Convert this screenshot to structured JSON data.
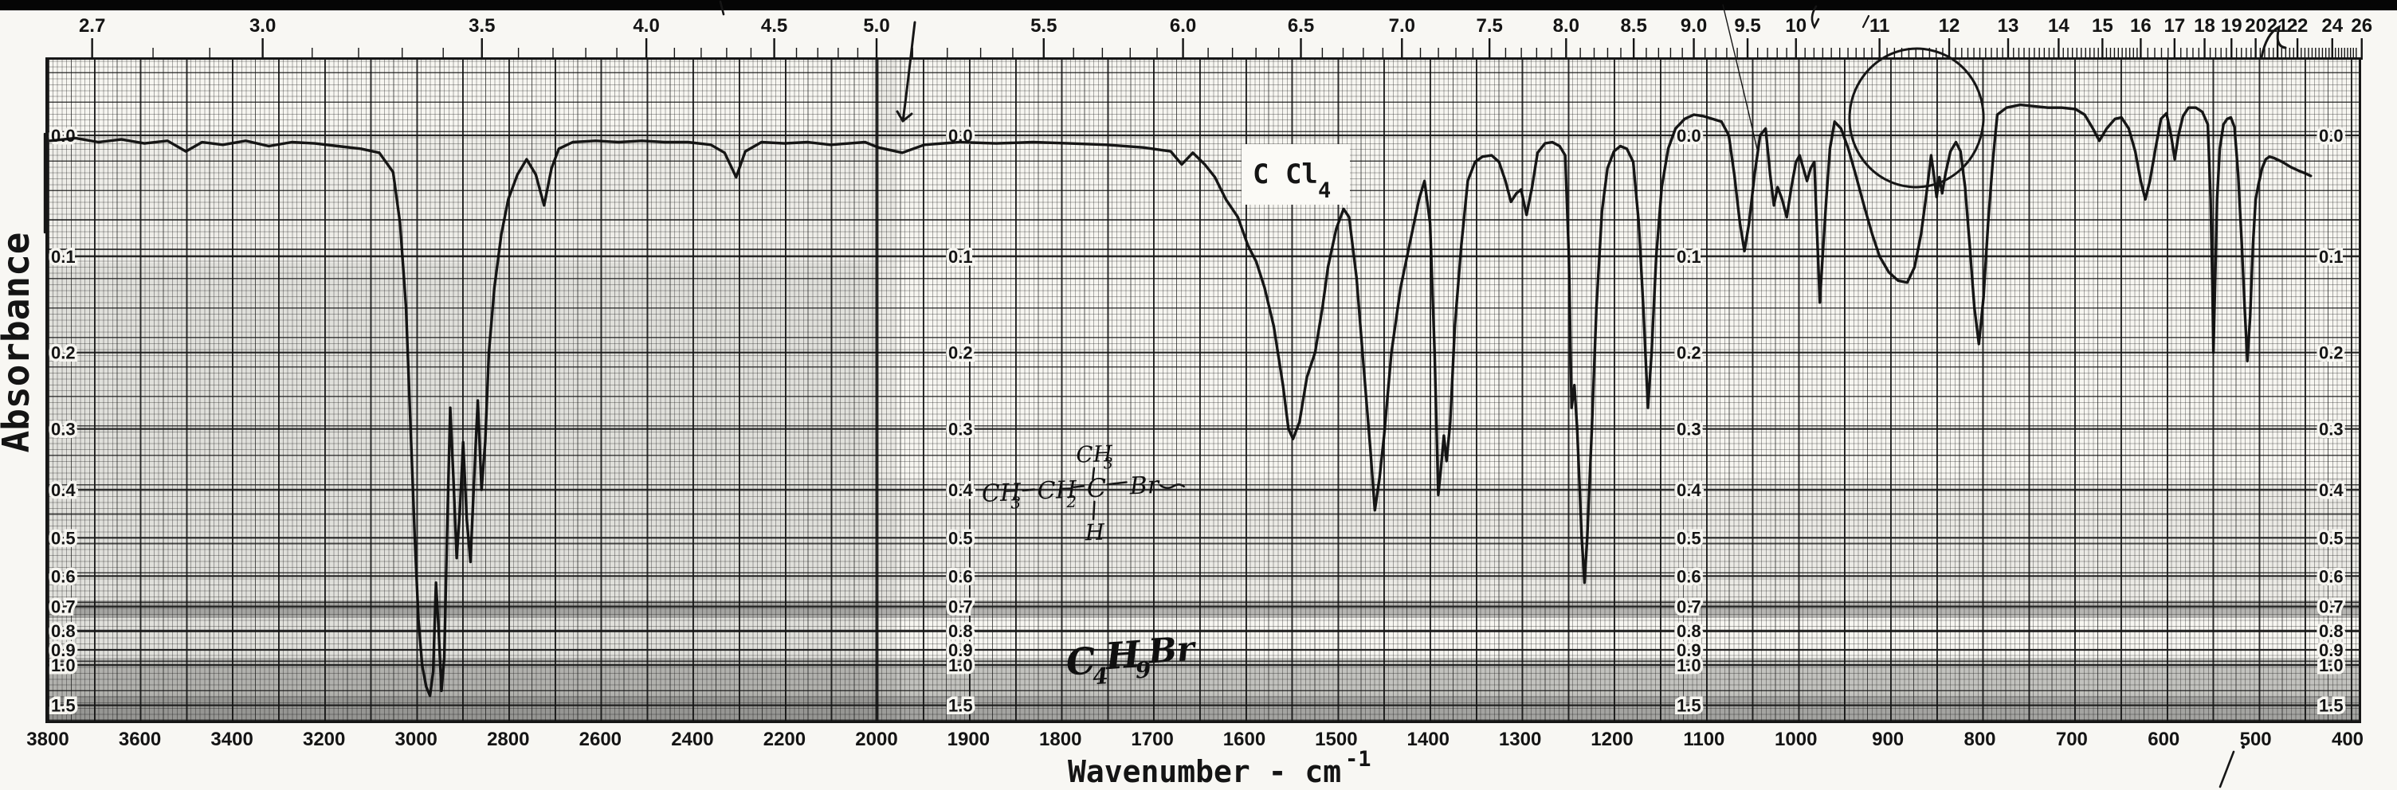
{
  "page": {
    "background_color": "#f8f7f3",
    "ink_color": "#161616",
    "scan_edge_bar": "black strip at top of scanned page"
  },
  "chart_data": {
    "type": "line",
    "title": "",
    "description": "Scanned infrared absorbance spectrum of C4H9Br (2-bromobutane) in CCl4 solvent on printed chart-ruled paper",
    "legend_position": "none",
    "grid": "fine printed graph grid, on",
    "x_axis_bottom": {
      "label_text": "Wavenumber - cm",
      "label_exponent": "-1",
      "tick_values": [
        3800,
        3600,
        3400,
        3200,
        3000,
        2800,
        2600,
        2400,
        2200,
        2000,
        1900,
        1800,
        1700,
        1600,
        1500,
        1400,
        1300,
        1200,
        1100,
        1000,
        900,
        800,
        700,
        600,
        500,
        400
      ],
      "range_note": "scale changes at 2000 cm-1: 3800-2000 compressed, 2000-400 expanded"
    },
    "x_axis_top": {
      "unit": "wavelength-microns",
      "labels": [
        "2.7",
        "3.0",
        "3.5",
        "4.0",
        "4.5",
        "5.0",
        "5.5",
        "6.0",
        "6.5",
        "7.0",
        "7.5",
        "8.0",
        "8.5",
        "9.0",
        "9.5",
        "10",
        "11",
        "12",
        "13",
        "14",
        "15",
        "16",
        "17",
        "18",
        "19",
        "20",
        "21",
        "22",
        "24",
        "26"
      ],
      "values": [
        2.7,
        3.0,
        3.5,
        4.0,
        4.5,
        5.0,
        5.5,
        6.0,
        6.5,
        7.0,
        7.5,
        8.0,
        8.5,
        9.0,
        9.5,
        10,
        11,
        12,
        13,
        14,
        15,
        16,
        17,
        18,
        19,
        20,
        21,
        22,
        24,
        26
      ]
    },
    "y_axis": {
      "label": "Absorbance",
      "tick_labels": [
        "0.0",
        "0.1",
        "0.2",
        "0.3",
        "0.4",
        "0.5",
        "0.6",
        "0.7",
        "0.8",
        "0.9",
        "1.0",
        "1.5"
      ],
      "tick_values": [
        0.0,
        0.1,
        0.2,
        0.3,
        0.4,
        0.5,
        0.6,
        0.7,
        0.8,
        0.9,
        1.0,
        1.5
      ],
      "scale_note": "linear in transmittance, labeled in absorbance; label columns repeated 4 times across chart"
    },
    "annotations": {
      "solvent": {
        "text_main": "C Cl",
        "text_sub": "4"
      },
      "formula": {
        "c": "C",
        "sub4": "4",
        "h": "H",
        "sub9": "9",
        "br": "Br"
      },
      "structure": {
        "reading": "CH3-CH2-C(CH3)(H)-Br",
        "chain1": "CH",
        "chain1_sub": "3",
        "chain2": "CH",
        "chain2_sub": "2",
        "center": "C",
        "top_group": "CH",
        "top_sub": "3",
        "bottom": "H",
        "halide": "Br"
      },
      "pen_marks": [
        "arrow-at-5.1-microns",
        "ellipse-circle-around-11.5-micron-band",
        "curl-mark-top-right",
        "scribbles-top",
        "slash-bottom-right",
        "tick-above-4.7-microns",
        "bracket-left-edge"
      ]
    },
    "series": [
      {
        "name": "IR absorbance trace",
        "x_unit": "cm-1",
        "y_unit": "absorbance",
        "points": [
          [
            3795,
            0.004
          ],
          [
            3740,
            0.002
          ],
          [
            3690,
            0.005
          ],
          [
            3640,
            0.003
          ],
          [
            3590,
            0.006
          ],
          [
            3540,
            0.004
          ],
          [
            3500,
            0.012
          ],
          [
            3465,
            0.005
          ],
          [
            3420,
            0.007
          ],
          [
            3370,
            0.004
          ],
          [
            3320,
            0.008
          ],
          [
            3270,
            0.005
          ],
          [
            3220,
            0.006
          ],
          [
            3170,
            0.008
          ],
          [
            3120,
            0.01
          ],
          [
            3080,
            0.013
          ],
          [
            3050,
            0.028
          ],
          [
            3035,
            0.07
          ],
          [
            3022,
            0.15
          ],
          [
            3012,
            0.3
          ],
          [
            3003,
            0.5
          ],
          [
            2995,
            0.75
          ],
          [
            2987,
            1.0
          ],
          [
            2978,
            1.2
          ],
          [
            2970,
            1.32
          ],
          [
            2963,
            1.05
          ],
          [
            2957,
            0.62
          ],
          [
            2951,
            0.8
          ],
          [
            2945,
            1.25
          ],
          [
            2939,
            0.95
          ],
          [
            2933,
            0.5
          ],
          [
            2926,
            0.27
          ],
          [
            2919,
            0.38
          ],
          [
            2912,
            0.55
          ],
          [
            2905,
            0.44
          ],
          [
            2898,
            0.32
          ],
          [
            2890,
            0.46
          ],
          [
            2882,
            0.56
          ],
          [
            2874,
            0.38
          ],
          [
            2866,
            0.26
          ],
          [
            2858,
            0.4
          ],
          [
            2850,
            0.32
          ],
          [
            2842,
            0.2
          ],
          [
            2830,
            0.13
          ],
          [
            2815,
            0.08
          ],
          [
            2800,
            0.05
          ],
          [
            2780,
            0.03
          ],
          [
            2760,
            0.018
          ],
          [
            2740,
            0.03
          ],
          [
            2722,
            0.055
          ],
          [
            2706,
            0.025
          ],
          [
            2690,
            0.01
          ],
          [
            2660,
            0.005
          ],
          [
            2610,
            0.004
          ],
          [
            2560,
            0.005
          ],
          [
            2510,
            0.004
          ],
          [
            2460,
            0.005
          ],
          [
            2410,
            0.005
          ],
          [
            2360,
            0.007
          ],
          [
            2330,
            0.013
          ],
          [
            2305,
            0.032
          ],
          [
            2285,
            0.012
          ],
          [
            2250,
            0.005
          ],
          [
            2200,
            0.006
          ],
          [
            2150,
            0.005
          ],
          [
            2100,
            0.007
          ],
          [
            2060,
            0.006
          ],
          [
            2025,
            0.005
          ],
          [
            1998,
            0.009
          ],
          [
            1972,
            0.013
          ],
          [
            1948,
            0.007
          ],
          [
            1910,
            0.005
          ],
          [
            1870,
            0.006
          ],
          [
            1830,
            0.005
          ],
          [
            1790,
            0.006
          ],
          [
            1750,
            0.007
          ],
          [
            1710,
            0.009
          ],
          [
            1680,
            0.012
          ],
          [
            1668,
            0.022
          ],
          [
            1656,
            0.013
          ],
          [
            1643,
            0.022
          ],
          [
            1632,
            0.032
          ],
          [
            1620,
            0.05
          ],
          [
            1607,
            0.065
          ],
          [
            1596,
            0.09
          ],
          [
            1587,
            0.105
          ],
          [
            1578,
            0.13
          ],
          [
            1568,
            0.17
          ],
          [
            1558,
            0.24
          ],
          [
            1552,
            0.3
          ],
          [
            1547,
            0.315
          ],
          [
            1540,
            0.29
          ],
          [
            1532,
            0.23
          ],
          [
            1523,
            0.2
          ],
          [
            1515,
            0.15
          ],
          [
            1509,
            0.11
          ],
          [
            1500,
            0.075
          ],
          [
            1492,
            0.058
          ],
          [
            1486,
            0.065
          ],
          [
            1478,
            0.12
          ],
          [
            1470,
            0.22
          ],
          [
            1463,
            0.33
          ],
          [
            1458,
            0.44
          ],
          [
            1453,
            0.38
          ],
          [
            1448,
            0.31
          ],
          [
            1440,
            0.2
          ],
          [
            1430,
            0.13
          ],
          [
            1418,
            0.08
          ],
          [
            1410,
            0.05
          ],
          [
            1404,
            0.035
          ],
          [
            1398,
            0.07
          ],
          [
            1393,
            0.2
          ],
          [
            1389,
            0.41
          ],
          [
            1386,
            0.36
          ],
          [
            1383,
            0.31
          ],
          [
            1380,
            0.35
          ],
          [
            1376,
            0.29
          ],
          [
            1371,
            0.17
          ],
          [
            1364,
            0.09
          ],
          [
            1357,
            0.035
          ],
          [
            1349,
            0.02
          ],
          [
            1341,
            0.016
          ],
          [
            1331,
            0.015
          ],
          [
            1323,
            0.02
          ],
          [
            1316,
            0.035
          ],
          [
            1310,
            0.052
          ],
          [
            1304,
            0.045
          ],
          [
            1299,
            0.042
          ],
          [
            1293,
            0.063
          ],
          [
            1287,
            0.04
          ],
          [
            1281,
            0.013
          ],
          [
            1273,
            0.006
          ],
          [
            1265,
            0.005
          ],
          [
            1257,
            0.008
          ],
          [
            1251,
            0.015
          ],
          [
            1247,
            0.1
          ],
          [
            1244,
            0.27
          ],
          [
            1241,
            0.24
          ],
          [
            1238,
            0.3
          ],
          [
            1233,
            0.5
          ],
          [
            1230,
            0.62
          ],
          [
            1227,
            0.5
          ],
          [
            1222,
            0.3
          ],
          [
            1217,
            0.15
          ],
          [
            1211,
            0.06
          ],
          [
            1205,
            0.025
          ],
          [
            1198,
            0.012
          ],
          [
            1191,
            0.008
          ],
          [
            1184,
            0.01
          ],
          [
            1177,
            0.02
          ],
          [
            1171,
            0.07
          ],
          [
            1166,
            0.15
          ],
          [
            1161,
            0.27
          ],
          [
            1157,
            0.2
          ],
          [
            1152,
            0.1
          ],
          [
            1146,
            0.04
          ],
          [
            1139,
            0.01
          ],
          [
            1131,
            -0.005
          ],
          [
            1121,
            -0.012
          ],
          [
            1111,
            -0.015
          ],
          [
            1101,
            -0.014
          ],
          [
            1091,
            -0.012
          ],
          [
            1081,
            -0.01
          ],
          [
            1073,
            0.0
          ],
          [
            1067,
            0.03
          ],
          [
            1061,
            0.07
          ],
          [
            1056,
            0.095
          ],
          [
            1051,
            0.07
          ],
          [
            1045,
            0.03
          ],
          [
            1039,
            0.0
          ],
          [
            1033,
            -0.005
          ],
          [
            1028,
            0.03
          ],
          [
            1024,
            0.055
          ],
          [
            1020,
            0.04
          ],
          [
            1015,
            0.05
          ],
          [
            1010,
            0.065
          ],
          [
            1005,
            0.04
          ],
          [
            1000,
            0.02
          ],
          [
            996,
            0.015
          ],
          [
            992,
            0.025
          ],
          [
            988,
            0.035
          ],
          [
            984,
            0.025
          ],
          [
            980,
            0.02
          ],
          [
            977,
            0.08
          ],
          [
            974,
            0.145
          ],
          [
            971,
            0.1
          ],
          [
            967,
            0.05
          ],
          [
            963,
            0.01
          ],
          [
            958,
            -0.01
          ],
          [
            951,
            -0.005
          ],
          [
            943,
            0.01
          ],
          [
            935,
            0.03
          ],
          [
            926,
            0.055
          ],
          [
            917,
            0.08
          ],
          [
            909,
            0.1
          ],
          [
            899,
            0.115
          ],
          [
            889,
            0.123
          ],
          [
            879,
            0.125
          ],
          [
            871,
            0.11
          ],
          [
            864,
            0.08
          ],
          [
            858,
            0.045
          ],
          [
            853,
            0.015
          ],
          [
            850,
            0.03
          ],
          [
            847,
            0.048
          ],
          [
            844,
            0.032
          ],
          [
            841,
            0.045
          ],
          [
            837,
            0.028
          ],
          [
            832,
            0.012
          ],
          [
            826,
            0.005
          ],
          [
            821,
            0.012
          ],
          [
            816,
            0.04
          ],
          [
            811,
            0.09
          ],
          [
            806,
            0.15
          ],
          [
            801,
            0.19
          ],
          [
            796,
            0.14
          ],
          [
            791,
            0.07
          ],
          [
            786,
            0.02
          ],
          [
            781,
            -0.015
          ],
          [
            771,
            -0.02
          ],
          [
            756,
            -0.022
          ],
          [
            741,
            -0.021
          ],
          [
            726,
            -0.02
          ],
          [
            711,
            -0.02
          ],
          [
            696,
            -0.019
          ],
          [
            686,
            -0.015
          ],
          [
            677,
            -0.005
          ],
          [
            670,
            0.004
          ],
          [
            662,
            -0.005
          ],
          [
            653,
            -0.012
          ],
          [
            646,
            -0.013
          ],
          [
            638,
            -0.005
          ],
          [
            631,
            0.012
          ],
          [
            625,
            0.035
          ],
          [
            620,
            0.05
          ],
          [
            615,
            0.035
          ],
          [
            609,
            0.01
          ],
          [
            603,
            -0.012
          ],
          [
            597,
            -0.016
          ],
          [
            592,
            0.0
          ],
          [
            588,
            0.018
          ],
          [
            584,
            0.0
          ],
          [
            579,
            -0.014
          ],
          [
            573,
            -0.02
          ],
          [
            565,
            -0.02
          ],
          [
            558,
            -0.017
          ],
          [
            552,
            -0.008
          ],
          [
            549,
            0.05
          ],
          [
            547,
            0.13
          ],
          [
            546,
            0.2
          ],
          [
            544,
            0.12
          ],
          [
            542,
            0.05
          ],
          [
            539,
            0.01
          ],
          [
            535,
            -0.008
          ],
          [
            531,
            -0.012
          ],
          [
            527,
            -0.013
          ],
          [
            523,
            -0.006
          ],
          [
            519,
            0.03
          ],
          [
            515,
            0.09
          ],
          [
            512,
            0.15
          ],
          [
            509,
            0.21
          ],
          [
            506,
            0.16
          ],
          [
            503,
            0.09
          ],
          [
            500,
            0.05
          ],
          [
            497,
            0.038
          ],
          [
            493,
            0.025
          ],
          [
            489,
            0.018
          ],
          [
            485,
            0.016
          ],
          [
            480,
            0.017
          ],
          [
            471,
            0.02
          ],
          [
            462,
            0.024
          ],
          [
            453,
            0.027
          ],
          [
            446,
            0.029
          ],
          [
            440,
            0.031
          ]
        ]
      }
    ]
  }
}
